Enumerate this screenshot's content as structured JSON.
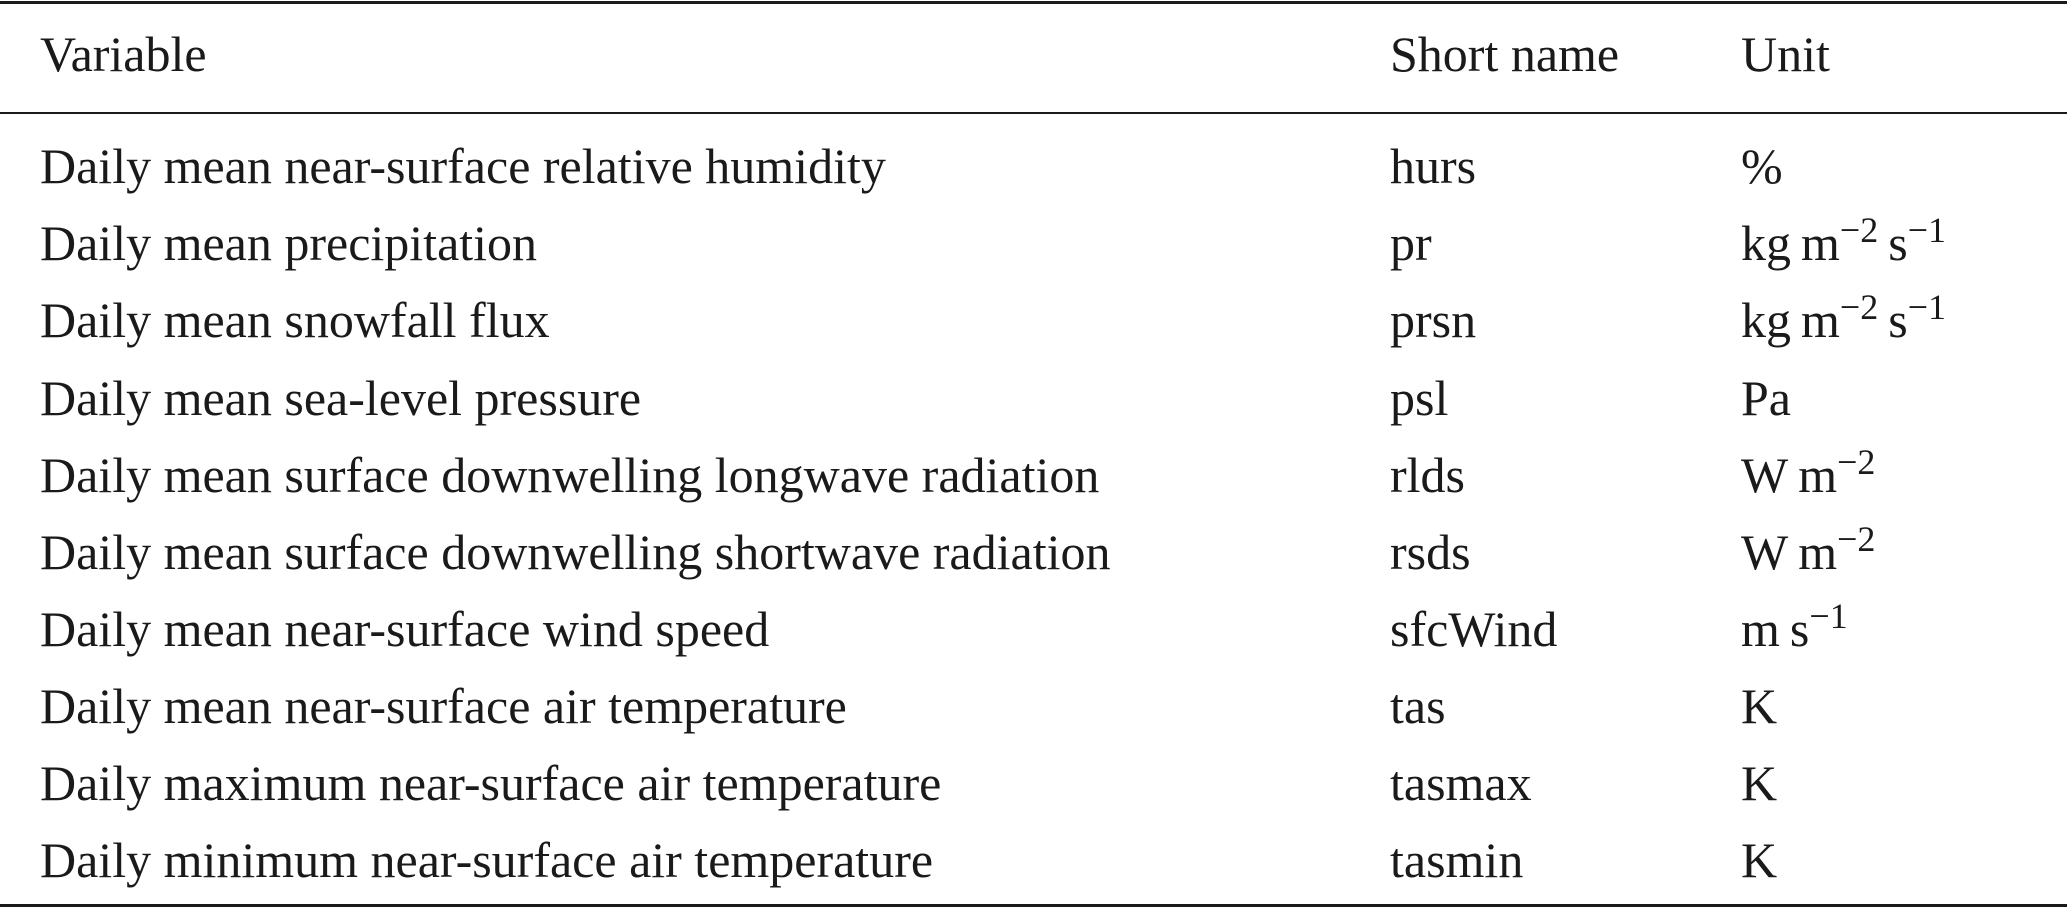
{
  "table": {
    "headers": {
      "variable": "Variable",
      "short_name": "Short name",
      "unit": "Unit"
    },
    "rows": [
      {
        "variable": "Daily mean near-surface relative humidity",
        "short_name": "hurs",
        "unit": "%"
      },
      {
        "variable": "Daily mean precipitation",
        "short_name": "pr",
        "unit": "kg m−2 s−1"
      },
      {
        "variable": "Daily mean snowfall flux",
        "short_name": "prsn",
        "unit": "kg m−2 s−1"
      },
      {
        "variable": "Daily mean sea-level pressure",
        "short_name": "psl",
        "unit": "Pa"
      },
      {
        "variable": "Daily mean surface downwelling longwave radiation",
        "short_name": "rlds",
        "unit": "W m−2"
      },
      {
        "variable": "Daily mean surface downwelling shortwave radiation",
        "short_name": "rsds",
        "unit": "W m−2"
      },
      {
        "variable": "Daily mean near-surface wind speed",
        "short_name": "sfcWind",
        "unit": "m s−1"
      },
      {
        "variable": "Daily mean near-surface air temperature",
        "short_name": "tas",
        "unit": "K"
      },
      {
        "variable": "Daily maximum near-surface air temperature",
        "short_name": "tasmax",
        "unit": "K"
      },
      {
        "variable": "Daily minimum near-surface air temperature",
        "short_name": "tasmin",
        "unit": "K"
      }
    ]
  }
}
